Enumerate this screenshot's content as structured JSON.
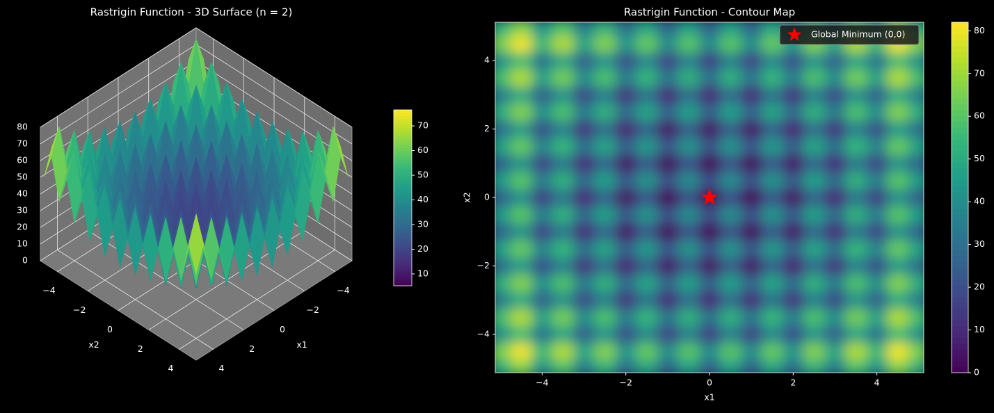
{
  "chart_data": [
    {
      "type": "surface3d",
      "title": "Rastrigin Function - 3D Surface (n = 2)",
      "xlabel": "x1",
      "ylabel": "x2",
      "x": [
        -5,
        -4.5,
        -4,
        -3.5,
        -3,
        -2.5,
        -2,
        -1.5,
        -1,
        -0.5,
        0,
        0.5,
        1,
        1.5,
        2,
        2.5,
        3,
        3.5,
        4,
        4.5,
        5
      ],
      "y": [
        -5,
        -4.5,
        -4,
        -3.5,
        -3,
        -2.5,
        -2,
        -1.5,
        -1,
        -0.5,
        0,
        0.5,
        1,
        1.5,
        2,
        2.5,
        3,
        3.5,
        4,
        4.5,
        5
      ],
      "z": [
        [
          50,
          65.25,
          41,
          57.25,
          34,
          51.25,
          29,
          47.25,
          26,
          45.25,
          25,
          45.25,
          26,
          47.25,
          29,
          51.25,
          34,
          57.25,
          41,
          65.25,
          50
        ],
        [
          65.25,
          80.5,
          56.25,
          72.5,
          49.25,
          66.5,
          44.25,
          62.5,
          41.25,
          60.5,
          40.25,
          60.5,
          41.25,
          62.5,
          44.25,
          66.5,
          49.25,
          72.5,
          56.25,
          80.5,
          65.25
        ],
        [
          41,
          56.25,
          32,
          48.25,
          25,
          42.25,
          20,
          38.25,
          17,
          36.25,
          16,
          36.25,
          17,
          38.25,
          20,
          42.25,
          25,
          48.25,
          32,
          56.25,
          41
        ],
        [
          57.25,
          72.5,
          48.25,
          64.5,
          41.25,
          58.5,
          36.25,
          54.5,
          33.25,
          52.5,
          32.25,
          52.5,
          33.25,
          54.5,
          36.25,
          58.5,
          41.25,
          64.5,
          48.25,
          72.5,
          57.25
        ],
        [
          34,
          49.25,
          25,
          41.25,
          18,
          35.25,
          13,
          31.25,
          10,
          29.25,
          9,
          29.25,
          10,
          31.25,
          13,
          35.25,
          18,
          41.25,
          25,
          49.25,
          34
        ],
        [
          51.25,
          66.5,
          42.25,
          58.5,
          35.25,
          52.5,
          30.25,
          48.5,
          27.25,
          46.5,
          26.25,
          46.5,
          27.25,
          48.5,
          30.25,
          52.5,
          35.25,
          58.5,
          42.25,
          66.5,
          51.25
        ],
        [
          29,
          44.25,
          20,
          36.25,
          13,
          30.25,
          8,
          26.25,
          5,
          24.25,
          4,
          24.25,
          5,
          26.25,
          8,
          30.25,
          13,
          36.25,
          20,
          44.25,
          29
        ],
        [
          47.25,
          62.5,
          38.25,
          54.5,
          31.25,
          48.5,
          26.25,
          44.5,
          23.25,
          42.5,
          22.25,
          42.5,
          23.25,
          44.5,
          26.25,
          48.5,
          31.25,
          54.5,
          38.25,
          62.5,
          47.25
        ],
        [
          26,
          41.25,
          17,
          33.25,
          10,
          27.25,
          5,
          23.25,
          2,
          21.25,
          1,
          21.25,
          2,
          23.25,
          5,
          27.25,
          10,
          33.25,
          17,
          41.25,
          26
        ],
        [
          45.25,
          60.5,
          36.25,
          52.5,
          29.25,
          46.5,
          24.25,
          42.5,
          21.25,
          40.5,
          20.25,
          40.5,
          21.25,
          42.5,
          24.25,
          46.5,
          29.25,
          52.5,
          36.25,
          60.5,
          45.25
        ],
        [
          25,
          40.25,
          16,
          32.25,
          9,
          26.25,
          4,
          22.25,
          1,
          20.25,
          0,
          20.25,
          1,
          22.25,
          4,
          26.25,
          9,
          32.25,
          16,
          40.25,
          25
        ],
        [
          45.25,
          60.5,
          36.25,
          52.5,
          29.25,
          46.5,
          24.25,
          42.5,
          21.25,
          40.5,
          20.25,
          40.5,
          21.25,
          42.5,
          24.25,
          46.5,
          29.25,
          52.5,
          36.25,
          60.5,
          45.25
        ],
        [
          26,
          41.25,
          17,
          33.25,
          10,
          27.25,
          5,
          23.25,
          2,
          21.25,
          1,
          21.25,
          2,
          23.25,
          5,
          27.25,
          10,
          33.25,
          17,
          41.25,
          26
        ],
        [
          47.25,
          62.5,
          38.25,
          54.5,
          31.25,
          48.5,
          26.25,
          44.5,
          23.25,
          42.5,
          22.25,
          42.5,
          23.25,
          44.5,
          26.25,
          48.5,
          31.25,
          54.5,
          38.25,
          62.5,
          47.25
        ],
        [
          29,
          44.25,
          20,
          36.25,
          13,
          30.25,
          8,
          26.25,
          5,
          24.25,
          4,
          24.25,
          5,
          26.25,
          8,
          30.25,
          13,
          36.25,
          20,
          44.25,
          29
        ],
        [
          51.25,
          66.5,
          42.25,
          58.5,
          35.25,
          52.5,
          30.25,
          48.5,
          27.25,
          46.5,
          26.25,
          46.5,
          27.25,
          48.5,
          30.25,
          52.5,
          35.25,
          58.5,
          42.25,
          66.5,
          51.25
        ],
        [
          34,
          49.25,
          25,
          41.25,
          18,
          35.25,
          13,
          31.25,
          10,
          29.25,
          9,
          29.25,
          10,
          31.25,
          13,
          35.25,
          18,
          41.25,
          25,
          49.25,
          34
        ],
        [
          57.25,
          72.5,
          48.25,
          64.5,
          41.25,
          58.5,
          36.25,
          54.5,
          33.25,
          52.5,
          32.25,
          52.5,
          33.25,
          54.5,
          36.25,
          58.5,
          41.25,
          64.5,
          48.25,
          72.5,
          57.25
        ],
        [
          41,
          56.25,
          32,
          48.25,
          25,
          42.25,
          20,
          38.25,
          17,
          36.25,
          16,
          36.25,
          17,
          38.25,
          20,
          42.25,
          25,
          48.25,
          32,
          56.25,
          41
        ],
        [
          65.25,
          80.5,
          56.25,
          72.5,
          49.25,
          66.5,
          44.25,
          62.5,
          41.25,
          60.5,
          40.25,
          60.5,
          41.25,
          62.5,
          44.25,
          66.5,
          49.25,
          72.5,
          56.25,
          80.5,
          65.25
        ],
        [
          50,
          65.25,
          41,
          57.25,
          34,
          51.25,
          29,
          47.25,
          26,
          45.25,
          25,
          45.25,
          26,
          47.25,
          29,
          51.25,
          34,
          57.25,
          41,
          65.25,
          50
        ]
      ],
      "xlim": [
        -5.12,
        5.12
      ],
      "ylim": [
        -5.12,
        5.12
      ],
      "zlim": [
        0,
        80
      ],
      "xticks": [
        {
          "value": -4,
          "label": "−4"
        },
        {
          "value": -2,
          "label": "−2"
        },
        0,
        2,
        4
      ],
      "yticks": [
        {
          "value": -4,
          "label": "−4"
        },
        {
          "value": -2,
          "label": "−2"
        },
        0,
        2,
        4
      ],
      "zticks": [
        0,
        10,
        20,
        30,
        40,
        50,
        60,
        70,
        80
      ],
      "colormap": "viridis",
      "clim": [
        5.2,
        76.5
      ],
      "cticks": [
        10,
        20,
        30,
        40,
        50,
        60,
        70
      ],
      "grid": true
    },
    {
      "type": "contour",
      "title": "Rastrigin Function - Contour Map",
      "xlabel": "x1",
      "ylabel": "x2",
      "x": [
        -5,
        -4.5,
        -4,
        -3.5,
        -3,
        -2.5,
        -2,
        -1.5,
        -1,
        -0.5,
        0,
        0.5,
        1,
        1.5,
        2,
        2.5,
        3,
        3.5,
        4,
        4.5,
        5
      ],
      "y": [
        -5,
        -4.5,
        -4,
        -3.5,
        -3,
        -2.5,
        -2,
        -1.5,
        -1,
        -0.5,
        0,
        0.5,
        1,
        1.5,
        2,
        2.5,
        3,
        3.5,
        4,
        4.5,
        5
      ],
      "z": [
        [
          50,
          65.25,
          41,
          57.25,
          34,
          51.25,
          29,
          47.25,
          26,
          45.25,
          25,
          45.25,
          26,
          47.25,
          29,
          51.25,
          34,
          57.25,
          41,
          65.25,
          50
        ],
        [
          65.25,
          80.5,
          56.25,
          72.5,
          49.25,
          66.5,
          44.25,
          62.5,
          41.25,
          60.5,
          40.25,
          60.5,
          41.25,
          62.5,
          44.25,
          66.5,
          49.25,
          72.5,
          56.25,
          80.5,
          65.25
        ],
        [
          41,
          56.25,
          32,
          48.25,
          25,
          42.25,
          20,
          38.25,
          17,
          36.25,
          16,
          36.25,
          17,
          38.25,
          20,
          42.25,
          25,
          48.25,
          32,
          56.25,
          41
        ],
        [
          57.25,
          72.5,
          48.25,
          64.5,
          41.25,
          58.5,
          36.25,
          54.5,
          33.25,
          52.5,
          32.25,
          52.5,
          33.25,
          54.5,
          36.25,
          58.5,
          41.25,
          64.5,
          48.25,
          72.5,
          57.25
        ],
        [
          34,
          49.25,
          25,
          41.25,
          18,
          35.25,
          13,
          31.25,
          10,
          29.25,
          9,
          29.25,
          10,
          31.25,
          13,
          35.25,
          18,
          41.25,
          25,
          49.25,
          34
        ],
        [
          51.25,
          66.5,
          42.25,
          58.5,
          35.25,
          52.5,
          30.25,
          48.5,
          27.25,
          46.5,
          26.25,
          46.5,
          27.25,
          48.5,
          30.25,
          52.5,
          35.25,
          58.5,
          42.25,
          66.5,
          51.25
        ],
        [
          29,
          44.25,
          20,
          36.25,
          13,
          30.25,
          8,
          26.25,
          5,
          24.25,
          4,
          24.25,
          5,
          26.25,
          8,
          30.25,
          13,
          36.25,
          20,
          44.25,
          29
        ],
        [
          47.25,
          62.5,
          38.25,
          54.5,
          31.25,
          48.5,
          26.25,
          44.5,
          23.25,
          42.5,
          22.25,
          42.5,
          23.25,
          44.5,
          26.25,
          48.5,
          31.25,
          54.5,
          38.25,
          62.5,
          47.25
        ],
        [
          26,
          41.25,
          17,
          33.25,
          10,
          27.25,
          5,
          23.25,
          2,
          21.25,
          1,
          21.25,
          2,
          23.25,
          5,
          27.25,
          10,
          33.25,
          17,
          41.25,
          26
        ],
        [
          45.25,
          60.5,
          36.25,
          52.5,
          29.25,
          46.5,
          24.25,
          42.5,
          21.25,
          40.5,
          20.25,
          40.5,
          21.25,
          42.5,
          24.25,
          46.5,
          29.25,
          52.5,
          36.25,
          60.5,
          45.25
        ],
        [
          25,
          40.25,
          16,
          32.25,
          9,
          26.25,
          4,
          22.25,
          1,
          20.25,
          0,
          20.25,
          1,
          22.25,
          4,
          26.25,
          9,
          32.25,
          16,
          40.25,
          25
        ],
        [
          45.25,
          60.5,
          36.25,
          52.5,
          29.25,
          46.5,
          24.25,
          42.5,
          21.25,
          40.5,
          20.25,
          40.5,
          21.25,
          42.5,
          24.25,
          46.5,
          29.25,
          52.5,
          36.25,
          60.5,
          45.25
        ],
        [
          26,
          41.25,
          17,
          33.25,
          10,
          27.25,
          5,
          23.25,
          2,
          21.25,
          1,
          21.25,
          2,
          23.25,
          5,
          27.25,
          10,
          33.25,
          17,
          41.25,
          26
        ],
        [
          47.25,
          62.5,
          38.25,
          54.5,
          31.25,
          48.5,
          26.25,
          44.5,
          23.25,
          42.5,
          22.25,
          42.5,
          23.25,
          44.5,
          26.25,
          48.5,
          31.25,
          54.5,
          38.25,
          62.5,
          47.25
        ],
        [
          29,
          44.25,
          20,
          36.25,
          13,
          30.25,
          8,
          26.25,
          5,
          24.25,
          4,
          24.25,
          5,
          26.25,
          8,
          30.25,
          13,
          36.25,
          20,
          44.25,
          29
        ],
        [
          51.25,
          66.5,
          42.25,
          58.5,
          35.25,
          52.5,
          30.25,
          48.5,
          27.25,
          46.5,
          26.25,
          46.5,
          27.25,
          48.5,
          30.25,
          52.5,
          35.25,
          58.5,
          42.25,
          66.5,
          51.25
        ],
        [
          34,
          49.25,
          25,
          41.25,
          18,
          35.25,
          13,
          31.25,
          10,
          29.25,
          9,
          29.25,
          10,
          31.25,
          13,
          35.25,
          18,
          41.25,
          25,
          49.25,
          34
        ],
        [
          57.25,
          72.5,
          48.25,
          64.5,
          41.25,
          58.5,
          36.25,
          54.5,
          33.25,
          52.5,
          32.25,
          52.5,
          33.25,
          54.5,
          36.25,
          58.5,
          41.25,
          64.5,
          48.25,
          72.5,
          57.25
        ],
        [
          41,
          56.25,
          32,
          48.25,
          25,
          42.25,
          20,
          38.25,
          17,
          36.25,
          16,
          36.25,
          17,
          38.25,
          20,
          42.25,
          25,
          48.25,
          32,
          56.25,
          41
        ],
        [
          65.25,
          80.5,
          56.25,
          72.5,
          49.25,
          66.5,
          44.25,
          62.5,
          41.25,
          60.5,
          40.25,
          60.5,
          41.25,
          62.5,
          44.25,
          66.5,
          49.25,
          72.5,
          56.25,
          80.5,
          65.25
        ],
        [
          50,
          65.25,
          41,
          57.25,
          34,
          51.25,
          29,
          47.25,
          26,
          45.25,
          25,
          45.25,
          26,
          47.25,
          29,
          51.25,
          34,
          57.25,
          41,
          65.25,
          50
        ]
      ],
      "xlim": [
        -5.12,
        5.12
      ],
      "ylim": [
        -5.12,
        5.12
      ],
      "xticks": [
        {
          "value": -4,
          "label": "−4"
        },
        {
          "value": -2,
          "label": "−2"
        },
        0,
        2,
        4
      ],
      "yticks": [
        {
          "value": -4,
          "label": "−4"
        },
        {
          "value": -2,
          "label": "−2"
        },
        0,
        2,
        4
      ],
      "colormap": "viridis",
      "clim": [
        0,
        82
      ],
      "cticks": [
        0,
        10,
        20,
        30,
        40,
        50,
        60,
        70,
        80
      ],
      "series": [
        {
          "name": "Global Minimum (0,0)",
          "color": "#ff0000",
          "x": [
            0
          ],
          "y": [
            0
          ]
        }
      ],
      "legend": "upper right"
    }
  ]
}
